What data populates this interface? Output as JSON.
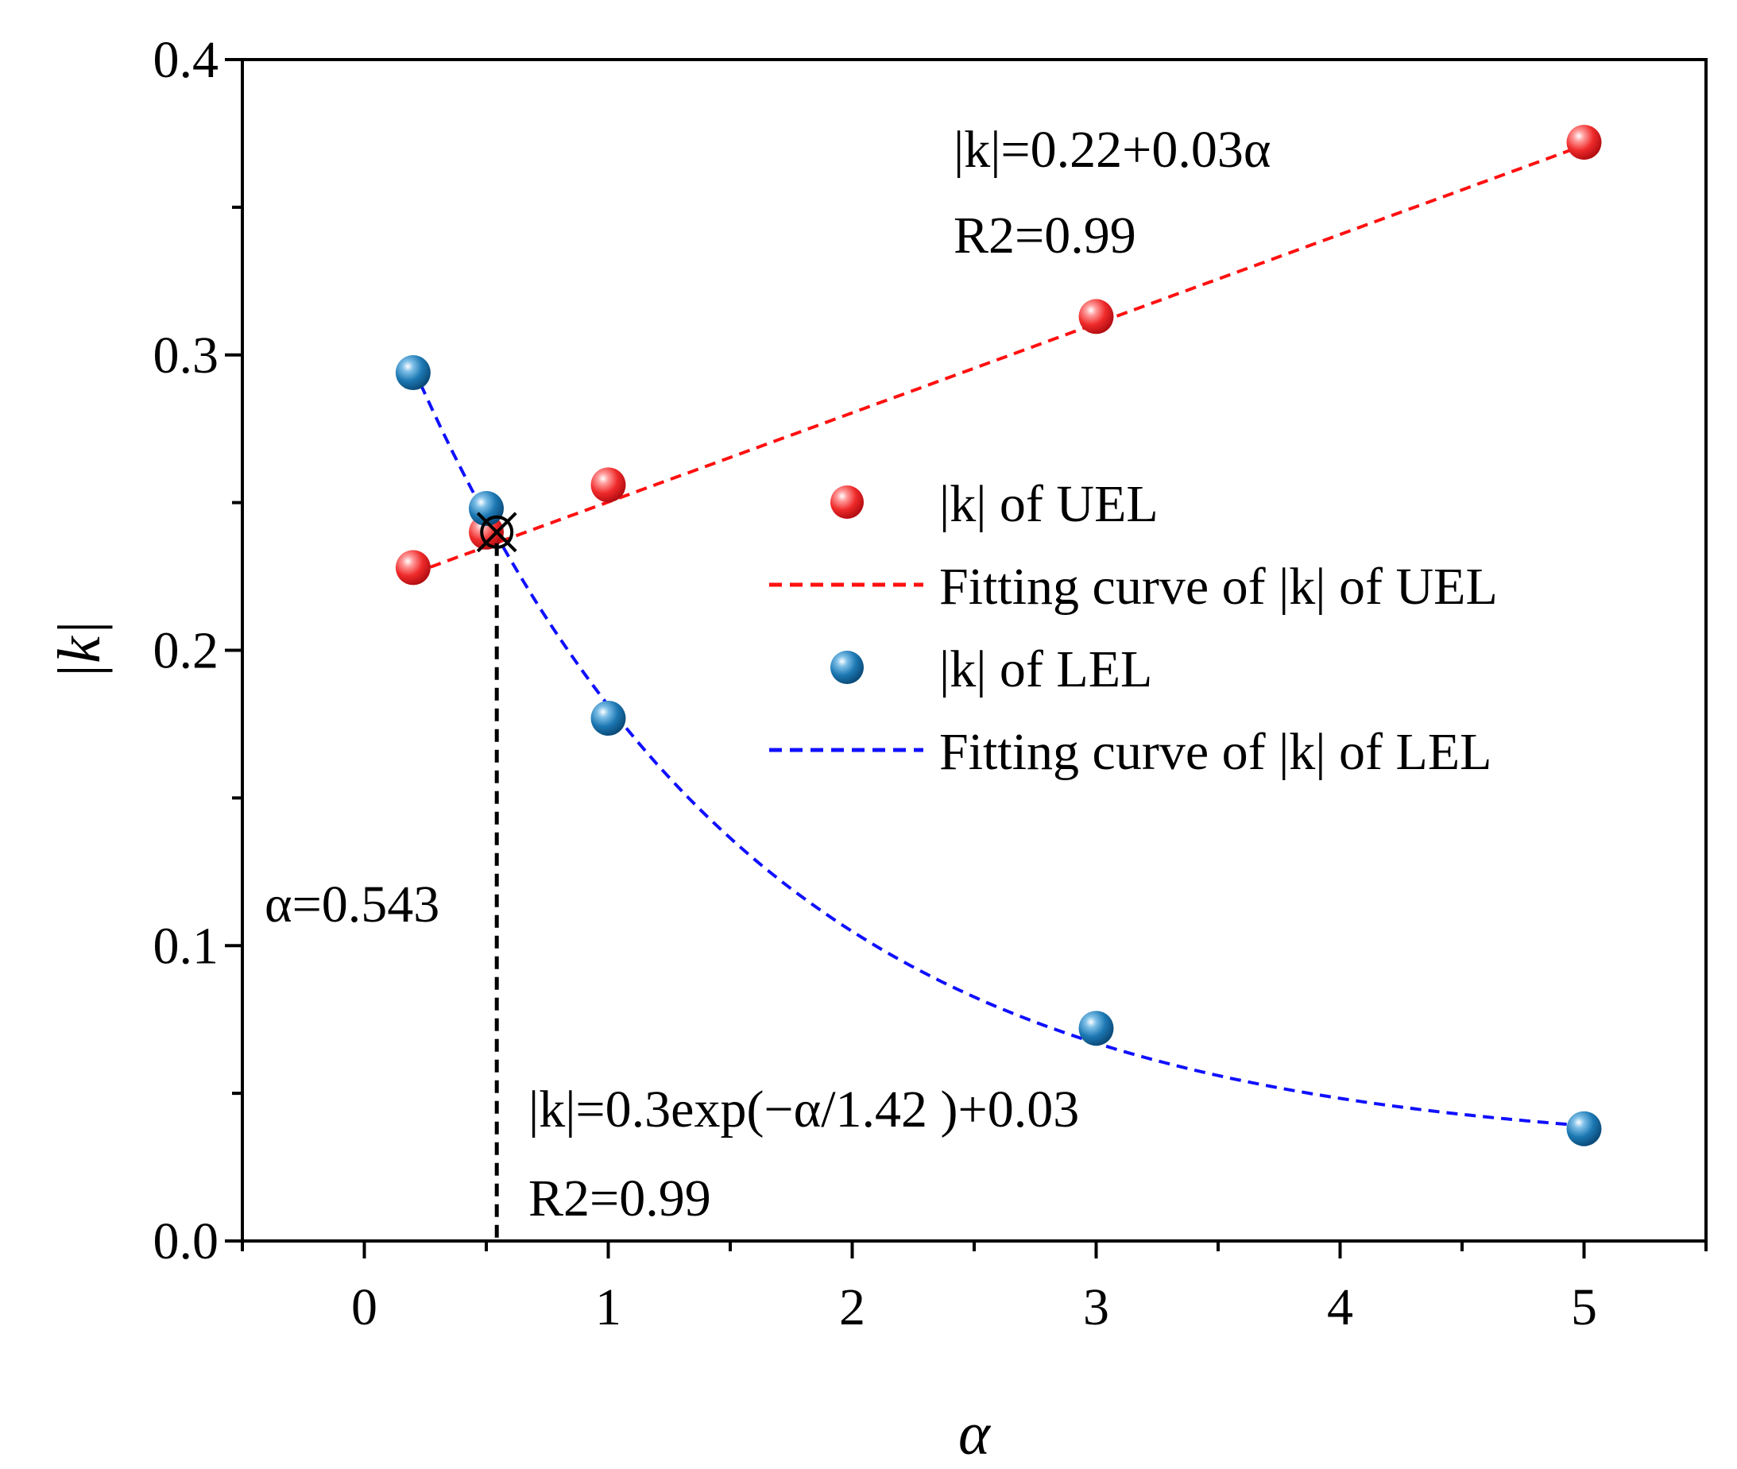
{
  "chart_data": {
    "type": "scatter",
    "title": "",
    "xlabel": "α",
    "ylabel": "|k|",
    "xlim": [
      -0.5,
      5.5
    ],
    "ylim": [
      0.0,
      0.4
    ],
    "x_ticks": [
      0,
      1,
      2,
      3,
      4,
      5
    ],
    "x_tick_labels": [
      "0",
      "1",
      "2",
      "3",
      "4",
      "5"
    ],
    "y_ticks": [
      0.0,
      0.1,
      0.2,
      0.3,
      0.4
    ],
    "y_tick_labels": [
      "0.0",
      "0.1",
      "0.2",
      "0.3",
      "0.4"
    ],
    "grid": false,
    "legend_position": "center-right",
    "series": [
      {
        "name": "|k| of  UEL",
        "kind": "points",
        "color": "#e8262b",
        "x": [
          0.2,
          0.5,
          1,
          3,
          5
        ],
        "y": [
          0.228,
          0.24,
          0.256,
          0.313,
          0.372
        ]
      },
      {
        "name": "Fitting curve of  |k| of  UEL",
        "kind": "fit",
        "color": "#ff1010",
        "equation": "|k|=0.22+0.03α",
        "r2": "R2=0.99",
        "formula": "linear",
        "intercept": 0.22,
        "slope": 0.0302,
        "x_range": [
          0.2,
          5
        ]
      },
      {
        "name": "|k| of  LEL",
        "kind": "points",
        "color": "#1a73b0",
        "x": [
          0.2,
          0.5,
          1,
          3,
          5
        ],
        "y": [
          0.294,
          0.248,
          0.177,
          0.072,
          0.038
        ]
      },
      {
        "name": "Fitting curve of  |k| of  LEL",
        "kind": "fit",
        "color": "#1010ff",
        "equation": "|k|=0.3exp(−α/1.42 )+0.03",
        "r2": "R2=0.99",
        "formula": "exponential",
        "amplitude": 0.306,
        "tau": 1.42,
        "offset": 0.03,
        "x_range": [
          0.2,
          5
        ]
      }
    ],
    "intersection": {
      "x": 0.543,
      "y": 0.24,
      "label": "α=0.543"
    }
  }
}
